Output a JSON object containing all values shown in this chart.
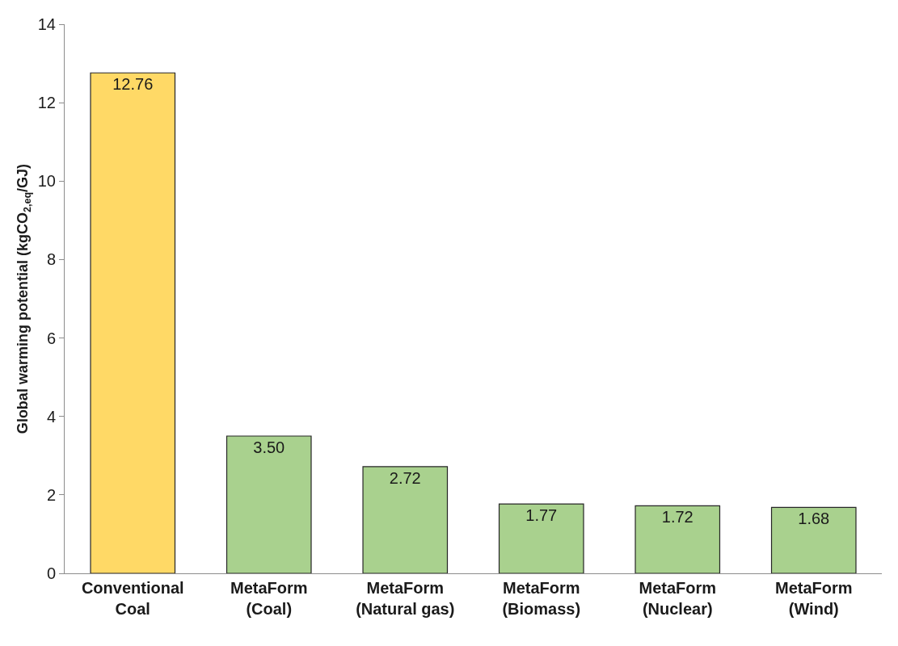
{
  "chart_data": {
    "type": "bar",
    "ylabel": "Global warming potential (kgCO$_{2,eq}$/GJ)",
    "categories": [
      "Conventional Coal",
      "MetaForm (Coal)",
      "MetaForm (Natural gas)",
      "MetaForm (Biomass)",
      "MetaForm (Nuclear)",
      "MetaForm (Wind)"
    ],
    "values": [
      12.76,
      3.5,
      2.72,
      1.77,
      1.72,
      1.68
    ],
    "value_labels": [
      "12.76",
      "3.50",
      "2.72",
      "1.77",
      "1.72",
      "1.68"
    ],
    "colors": [
      "#ffd966",
      "#a9d18e",
      "#a9d18e",
      "#a9d18e",
      "#a9d18e",
      "#a9d18e"
    ],
    "ylim": [
      0,
      14
    ],
    "yticks": [
      0,
      2,
      4,
      6,
      8,
      10,
      12,
      14
    ],
    "grid": false
  }
}
